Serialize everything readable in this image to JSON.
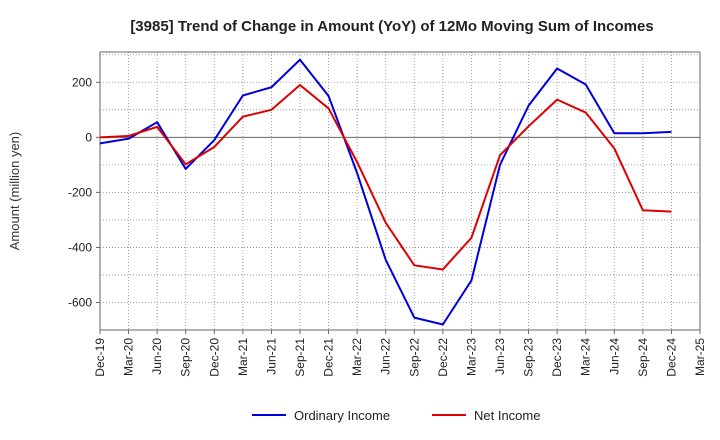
{
  "chart_data": {
    "type": "line",
    "title": "[3985]  Trend of Change in Amount (YoY) of 12Mo Moving Sum of Incomes",
    "xlabel": "",
    "ylabel": "Amount (million yen)",
    "ylim": [
      -700,
      310
    ],
    "yticks": [
      200,
      0,
      -200,
      -400,
      -600
    ],
    "grid": true,
    "legend_position": "bottom",
    "categories": [
      "Dec-19",
      "Mar-20",
      "Jun-20",
      "Sep-20",
      "Dec-20",
      "Mar-21",
      "Jun-21",
      "Sep-21",
      "Dec-21",
      "Mar-22",
      "Jun-22",
      "Sep-22",
      "Dec-22",
      "Mar-23",
      "Jun-23",
      "Sep-23",
      "Dec-23",
      "Mar-24",
      "Jun-24",
      "Sep-24",
      "Dec-24",
      "Mar-25"
    ],
    "series": [
      {
        "name": "Ordinary Income",
        "color": "#0000dd",
        "values": [
          -22,
          -5,
          55,
          -115,
          -10,
          152,
          182,
          282,
          150,
          -130,
          -445,
          -655,
          -680,
          -520,
          -100,
          115,
          250,
          192,
          15,
          15,
          20,
          null
        ]
      },
      {
        "name": "Net Income",
        "color": "#dd0000",
        "values": [
          0,
          5,
          38,
          -98,
          -35,
          75,
          100,
          190,
          105,
          -90,
          -310,
          -465,
          -480,
          -365,
          -65,
          40,
          137,
          90,
          -40,
          -265,
          -270,
          null
        ]
      }
    ]
  }
}
